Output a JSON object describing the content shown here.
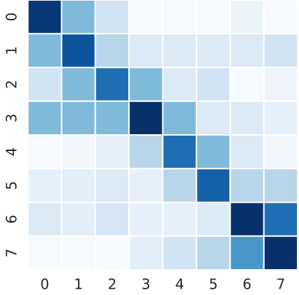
{
  "chart_data": {
    "type": "heatmap",
    "x_labels": [
      0,
      1,
      2,
      3,
      4,
      5,
      6,
      7
    ],
    "y_labels": [
      0,
      1,
      2,
      3,
      4,
      5,
      6,
      7
    ],
    "values": [
      [
        0.95,
        0.45,
        0.2,
        0.02,
        0.03,
        0.03,
        0.08,
        0.02
      ],
      [
        0.45,
        0.85,
        0.3,
        0.15,
        0.15,
        0.15,
        0.15,
        0.2
      ],
      [
        0.2,
        0.45,
        0.75,
        0.45,
        0.15,
        0.2,
        0.03,
        0.07
      ],
      [
        0.45,
        0.45,
        0.45,
        0.98,
        0.45,
        0.15,
        0.15,
        0.1
      ],
      [
        0.02,
        0.05,
        0.1,
        0.3,
        0.75,
        0.45,
        0.15,
        0.05
      ],
      [
        0.1,
        0.12,
        0.15,
        0.1,
        0.3,
        0.8,
        0.3,
        0.3
      ],
      [
        0.15,
        0.12,
        0.18,
        0.1,
        0.1,
        0.15,
        0.98,
        0.75
      ],
      [
        0.03,
        0.03,
        0.02,
        0.12,
        0.2,
        0.3,
        0.6,
        0.98
      ]
    ],
    "colormap": [
      "#f7fbff",
      "#deebf7",
      "#c6dbef",
      "#9ecae1",
      "#6baed6",
      "#4292c6",
      "#2171b5",
      "#08519c",
      "#08306b"
    ]
  }
}
